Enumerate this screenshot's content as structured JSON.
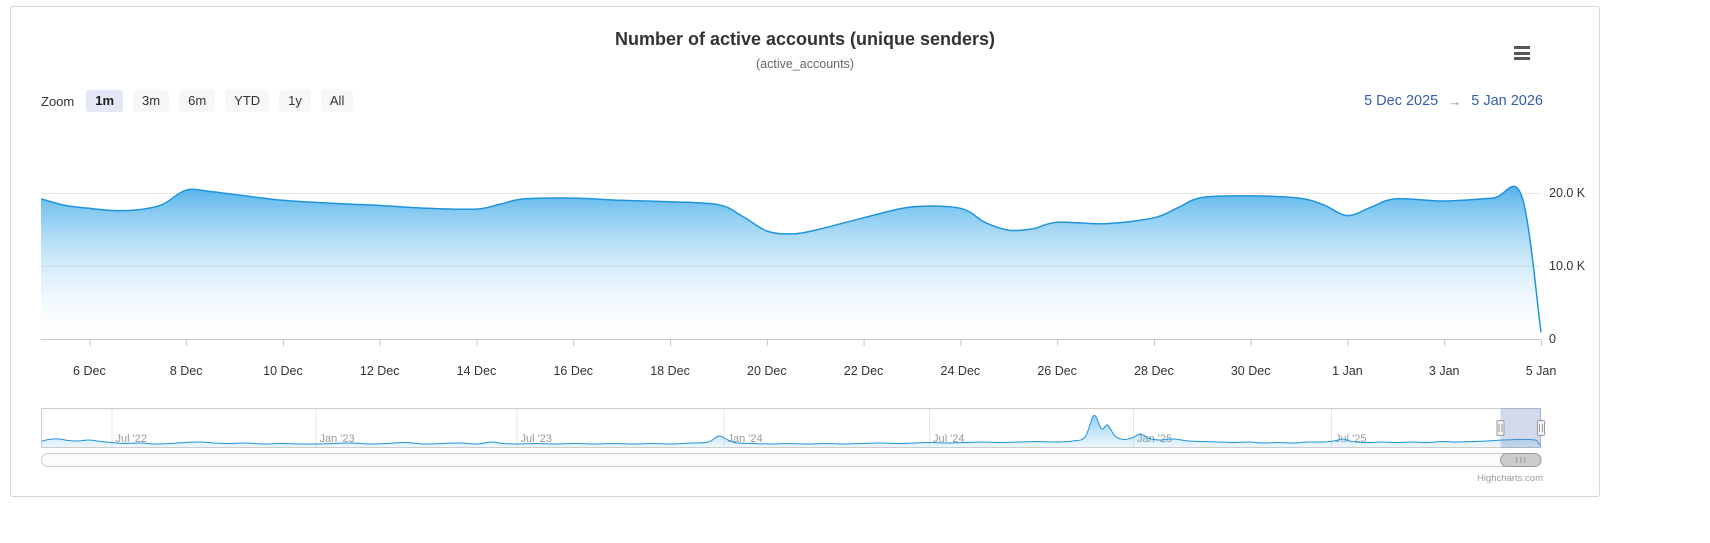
{
  "header": {
    "title": "Number of active accounts (unique senders)",
    "subtitle": "(active_accounts)"
  },
  "range_selector": {
    "zoom_label": "Zoom",
    "buttons": [
      {
        "label": "1m",
        "selected": true
      },
      {
        "label": "3m",
        "selected": false
      },
      {
        "label": "6m",
        "selected": false
      },
      {
        "label": "YTD",
        "selected": false
      },
      {
        "label": "1y",
        "selected": false
      },
      {
        "label": "All",
        "selected": false
      }
    ],
    "from_date": "5 Dec 2025",
    "arrow": "→",
    "to_date": "5 Jan 2026"
  },
  "credits": "Highcharts.com",
  "colors": {
    "series_line": "#1f94da",
    "area_top": "#43acea",
    "grid": "#e6e6e6",
    "axis_line": "#c0c6d2",
    "axis_label": "#333333",
    "nav_label": "#999999",
    "nav_outline": "#cccccc",
    "mask": "rgba(102,133,194,0.3)",
    "handle_fill": "#f2f2f2",
    "handle_stroke": "#999999",
    "scroll_track": "#fbfbfb",
    "scroll_track_border": "#cccccc",
    "scroll_thumb": "#cccccc",
    "scroll_thumb_border": "#9a9a9a",
    "button_selected_bg": "#e3e7f8",
    "button_selected_text": "#1c1c1c",
    "range_input_text": "#335cad"
  },
  "chart_data": {
    "type": "area",
    "title": "Number of active accounts (unique senders)",
    "subtitle": "(active_accounts)",
    "x_unit": "days since 5 Dec 2025",
    "y_unit": "thousands of accounts (K)",
    "ylim": [
      0,
      26
    ],
    "visible_range": {
      "from": "5 Dec 2025",
      "to": "5 Jan 2026"
    },
    "yaxis": {
      "opposite": true,
      "values": [
        20,
        10,
        0
      ],
      "labels": [
        "20.0 K",
        "10.0 K",
        "0"
      ]
    },
    "xaxis": {
      "ticks": [
        {
          "x": 1,
          "label": "6 Dec"
        },
        {
          "x": 3,
          "label": "8 Dec"
        },
        {
          "x": 5,
          "label": "10 Dec"
        },
        {
          "x": 7,
          "label": "12 Dec"
        },
        {
          "x": 9,
          "label": "14 Dec"
        },
        {
          "x": 11,
          "label": "16 Dec"
        },
        {
          "x": 13,
          "label": "18 Dec"
        },
        {
          "x": 15,
          "label": "20 Dec"
        },
        {
          "x": 17,
          "label": "22 Dec"
        },
        {
          "x": 19,
          "label": "24 Dec"
        },
        {
          "x": 21,
          "label": "26 Dec"
        },
        {
          "x": 23,
          "label": "28 Dec"
        },
        {
          "x": 25,
          "label": "30 Dec"
        },
        {
          "x": 27,
          "label": "1 Jan"
        },
        {
          "x": 29,
          "label": "3 Jan"
        },
        {
          "x": 31,
          "label": "5 Jan"
        }
      ]
    },
    "series": [
      {
        "name": "active_accounts",
        "points": [
          [
            0,
            19.2
          ],
          [
            0.5,
            18.3
          ],
          [
            1,
            17.9
          ],
          [
            1.5,
            17.6
          ],
          [
            2,
            17.7
          ],
          [
            2.5,
            18.4
          ],
          [
            3,
            20.4
          ],
          [
            3.5,
            20.2
          ],
          [
            4,
            19.8
          ],
          [
            5,
            19.0
          ],
          [
            6,
            18.6
          ],
          [
            7,
            18.3
          ],
          [
            8,
            17.9
          ],
          [
            9,
            17.8
          ],
          [
            9.5,
            18.5
          ],
          [
            10,
            19.2
          ],
          [
            11,
            19.3
          ],
          [
            12,
            19.0
          ],
          [
            13,
            18.8
          ],
          [
            14,
            18.4
          ],
          [
            14.5,
            16.8
          ],
          [
            15,
            14.8
          ],
          [
            15.5,
            14.4
          ],
          [
            16,
            14.9
          ],
          [
            17,
            16.6
          ],
          [
            18,
            18.1
          ],
          [
            19,
            17.9
          ],
          [
            19.5,
            16.0
          ],
          [
            20,
            14.9
          ],
          [
            20.5,
            15.1
          ],
          [
            21,
            16.0
          ],
          [
            22,
            15.8
          ],
          [
            23,
            16.6
          ],
          [
            23.5,
            18.0
          ],
          [
            24,
            19.4
          ],
          [
            25,
            19.6
          ],
          [
            26,
            19.3
          ],
          [
            26.5,
            18.4
          ],
          [
            27,
            16.9
          ],
          [
            27.5,
            18.1
          ],
          [
            28,
            19.2
          ],
          [
            29,
            18.9
          ],
          [
            30,
            19.3
          ],
          [
            30.6,
            19.6
          ],
          [
            31,
            0.9
          ]
        ]
      }
    ],
    "navigator": {
      "full_range": "Apr 2022 - Jan 2026",
      "max": 80,
      "selected_range": [
        0.973,
        1.0
      ],
      "labels": [
        {
          "x": 0.047,
          "label": "Jul '22"
        },
        {
          "x": 0.183,
          "label": "Jan '23"
        },
        {
          "x": 0.317,
          "label": "Jul '23"
        },
        {
          "x": 0.455,
          "label": "Jan '24"
        },
        {
          "x": 0.592,
          "label": "Jul '24"
        },
        {
          "x": 0.728,
          "label": "Jan '25"
        },
        {
          "x": 0.86,
          "label": "Jul '25"
        }
      ],
      "points": [
        [
          0,
          13
        ],
        [
          0.005,
          17
        ],
        [
          0.012,
          18
        ],
        [
          0.018,
          15
        ],
        [
          0.025,
          14
        ],
        [
          0.032,
          16
        ],
        [
          0.04,
          13
        ],
        [
          0.047,
          11
        ],
        [
          0.056,
          9
        ],
        [
          0.066,
          10
        ],
        [
          0.076,
          8
        ],
        [
          0.086,
          9
        ],
        [
          0.096,
          11
        ],
        [
          0.106,
          12
        ],
        [
          0.116,
          10
        ],
        [
          0.126,
          9
        ],
        [
          0.136,
          10
        ],
        [
          0.148,
          8
        ],
        [
          0.16,
          9
        ],
        [
          0.172,
          8
        ],
        [
          0.183,
          8
        ],
        [
          0.195,
          9
        ],
        [
          0.207,
          10
        ],
        [
          0.219,
          8
        ],
        [
          0.231,
          9
        ],
        [
          0.243,
          11
        ],
        [
          0.255,
          8
        ],
        [
          0.267,
          9
        ],
        [
          0.279,
          10
        ],
        [
          0.291,
          8
        ],
        [
          0.3,
          12
        ],
        [
          0.308,
          9
        ],
        [
          0.317,
          8
        ],
        [
          0.33,
          9
        ],
        [
          0.343,
          8
        ],
        [
          0.356,
          9
        ],
        [
          0.369,
          8
        ],
        [
          0.382,
          9
        ],
        [
          0.395,
          8
        ],
        [
          0.408,
          9
        ],
        [
          0.421,
          8
        ],
        [
          0.434,
          10
        ],
        [
          0.445,
          12
        ],
        [
          0.452,
          24
        ],
        [
          0.458,
          16
        ],
        [
          0.464,
          10
        ],
        [
          0.475,
          9
        ],
        [
          0.487,
          8
        ],
        [
          0.499,
          9
        ],
        [
          0.511,
          8
        ],
        [
          0.523,
          9
        ],
        [
          0.535,
          8
        ],
        [
          0.547,
          9
        ],
        [
          0.559,
          10
        ],
        [
          0.571,
          9
        ],
        [
          0.583,
          10
        ],
        [
          0.592,
          11
        ],
        [
          0.604,
          10
        ],
        [
          0.616,
          11
        ],
        [
          0.628,
          12
        ],
        [
          0.64,
          11
        ],
        [
          0.652,
          12
        ],
        [
          0.664,
          13
        ],
        [
          0.676,
          12
        ],
        [
          0.688,
          14
        ],
        [
          0.696,
          22
        ],
        [
          0.702,
          65
        ],
        [
          0.707,
          38
        ],
        [
          0.711,
          46
        ],
        [
          0.716,
          24
        ],
        [
          0.722,
          17
        ],
        [
          0.728,
          21
        ],
        [
          0.733,
          28
        ],
        [
          0.739,
          19
        ],
        [
          0.746,
          16
        ],
        [
          0.755,
          18
        ],
        [
          0.765,
          14
        ],
        [
          0.775,
          13
        ],
        [
          0.785,
          12
        ],
        [
          0.795,
          11
        ],
        [
          0.805,
          12
        ],
        [
          0.815,
          10
        ],
        [
          0.825,
          11
        ],
        [
          0.835,
          10
        ],
        [
          0.845,
          12
        ],
        [
          0.855,
          12
        ],
        [
          0.862,
          14
        ],
        [
          0.868,
          18
        ],
        [
          0.874,
          13
        ],
        [
          0.884,
          11
        ],
        [
          0.894,
          12
        ],
        [
          0.904,
          11
        ],
        [
          0.914,
          12
        ],
        [
          0.924,
          11
        ],
        [
          0.934,
          13
        ],
        [
          0.944,
          12
        ],
        [
          0.954,
          13
        ],
        [
          0.964,
          14
        ],
        [
          0.974,
          16
        ],
        [
          0.984,
          17
        ],
        [
          0.992,
          17
        ],
        [
          0.997,
          15
        ],
        [
          1,
          2
        ]
      ]
    }
  }
}
